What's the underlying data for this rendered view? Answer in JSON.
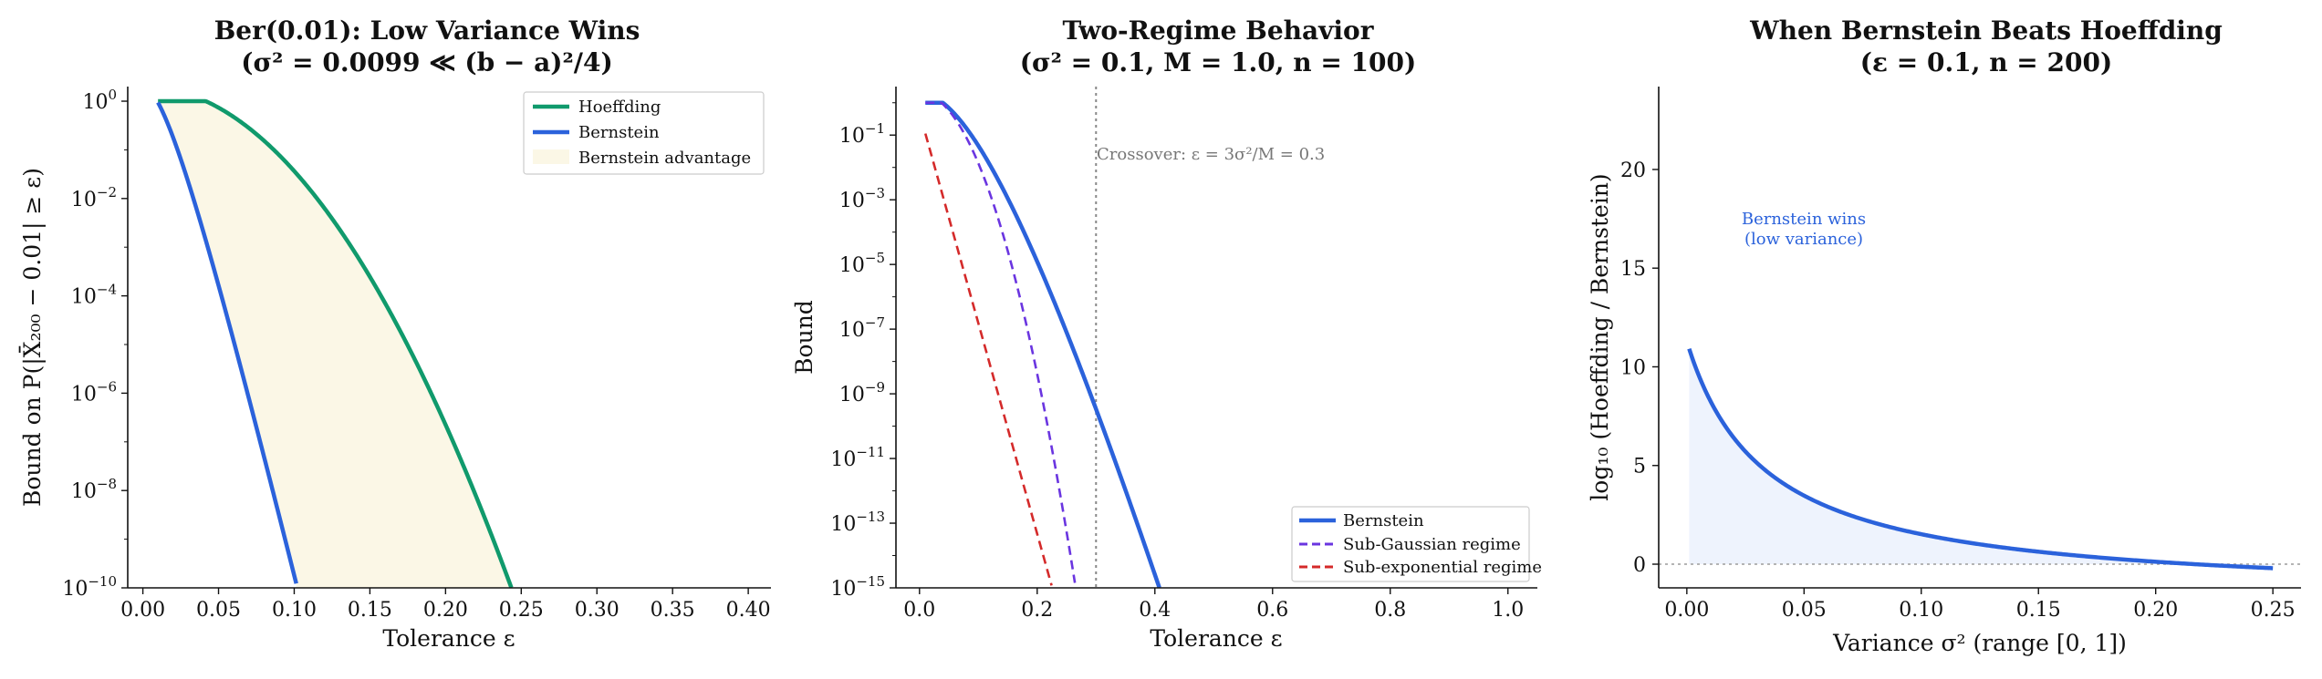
{
  "figure": {
    "background": "#ffffff"
  },
  "chart_data": [
    {
      "type": "line",
      "title": "Ber(0.01): Low Variance Wins",
      "subtitle": "(σ² = 0.0099 ≪ (b − a)²/4)",
      "xlabel": "Tolerance ε",
      "ylabel": "Bound on P(|X̄₂₀₀ − 0.01| ≥ ε)",
      "xlim": [
        -0.01,
        0.415
      ],
      "ylim_log10": [
        -10,
        0.3
      ],
      "log_y": true,
      "grid": false,
      "legend_position": "top-right",
      "x_ticks": [
        0.0,
        0.05,
        0.1,
        0.15,
        0.2,
        0.25,
        0.3,
        0.35,
        0.4
      ],
      "x_tick_labels": [
        "0.00",
        "0.05",
        "0.10",
        "0.15",
        "0.20",
        "0.25",
        "0.30",
        "0.35",
        "0.40"
      ],
      "y_ticks_exp": [
        0,
        -2,
        -4,
        -6,
        -8,
        -10
      ],
      "series": [
        {
          "name": "Hoeffding",
          "color": "#109a6c",
          "dash": false,
          "fn": "hoeffding_n200_c1"
        },
        {
          "name": "Bernstein",
          "color": "#2b62db",
          "dash": false,
          "fn": "bernstein_ber001"
        }
      ],
      "fill": {
        "name": "Bernstein advantage",
        "color": "#fbf7e6",
        "between": [
          "Bernstein",
          "Hoeffding"
        ]
      },
      "x_range": [
        0.01,
        0.3
      ]
    },
    {
      "type": "line",
      "title": "Two-Regime Behavior",
      "subtitle": "(σ² = 0.1, M = 1.0, n = 100)",
      "xlabel": "Tolerance ε",
      "ylabel": "Bound",
      "xlim": [
        -0.04,
        1.05
      ],
      "ylim_log10": [
        -15,
        0.5
      ],
      "log_y": true,
      "grid": false,
      "legend_position": "bottom-right",
      "x_ticks": [
        0.0,
        0.2,
        0.4,
        0.6,
        0.8,
        1.0
      ],
      "x_tick_labels": [
        "0.0",
        "0.2",
        "0.4",
        "0.6",
        "0.8",
        "1.0"
      ],
      "y_ticks_exp": [
        -1,
        -3,
        -5,
        -7,
        -9,
        -11,
        -13,
        -15
      ],
      "series": [
        {
          "name": "Bernstein",
          "color": "#2b62db",
          "dash": false,
          "fn": "bernstein_two_regime"
        },
        {
          "name": "Sub-Gaussian regime",
          "color": "#6a35e0",
          "dash": true,
          "fn": "subgaussian"
        },
        {
          "name": "Sub-exponential regime",
          "color": "#d42a2a",
          "dash": true,
          "fn": "subexponential"
        }
      ],
      "crossover": {
        "x": 0.3,
        "label": "Crossover: ε = 3σ²/M = 0.3",
        "color": "#888888"
      },
      "x_range": [
        0.01,
        1.0
      ]
    },
    {
      "type": "area",
      "title": "When Bernstein Beats Hoeffding",
      "subtitle": "(ε = 0.1, n = 200)",
      "xlabel": "Variance σ² (range [0, 1])",
      "ylabel": "log₁₀ (Hoeffding / Bernstein)",
      "xlim": [
        -0.012,
        0.262
      ],
      "ylim": [
        -1.2,
        24.2
      ],
      "log_y": false,
      "grid": false,
      "x_ticks": [
        0.0,
        0.05,
        0.1,
        0.15,
        0.2,
        0.25
      ],
      "x_tick_labels": [
        "0.00",
        "0.05",
        "0.10",
        "0.15",
        "0.20",
        "0.25"
      ],
      "y_ticks": [
        0,
        5,
        10,
        15,
        20
      ],
      "y_tick_labels": [
        "0",
        "5",
        "10",
        "15",
        "20"
      ],
      "series": [
        {
          "name": "log10 ratio",
          "color": "#2b62db",
          "fn": "log_ratio"
        }
      ],
      "fill_color": "#eef3fd",
      "zero_line_color": "#aaaaaa",
      "annotation": {
        "line1": "Bernstein wins",
        "line2": "(low variance)",
        "color": "#2b62db"
      },
      "x_range": [
        0.001,
        0.25
      ]
    }
  ]
}
